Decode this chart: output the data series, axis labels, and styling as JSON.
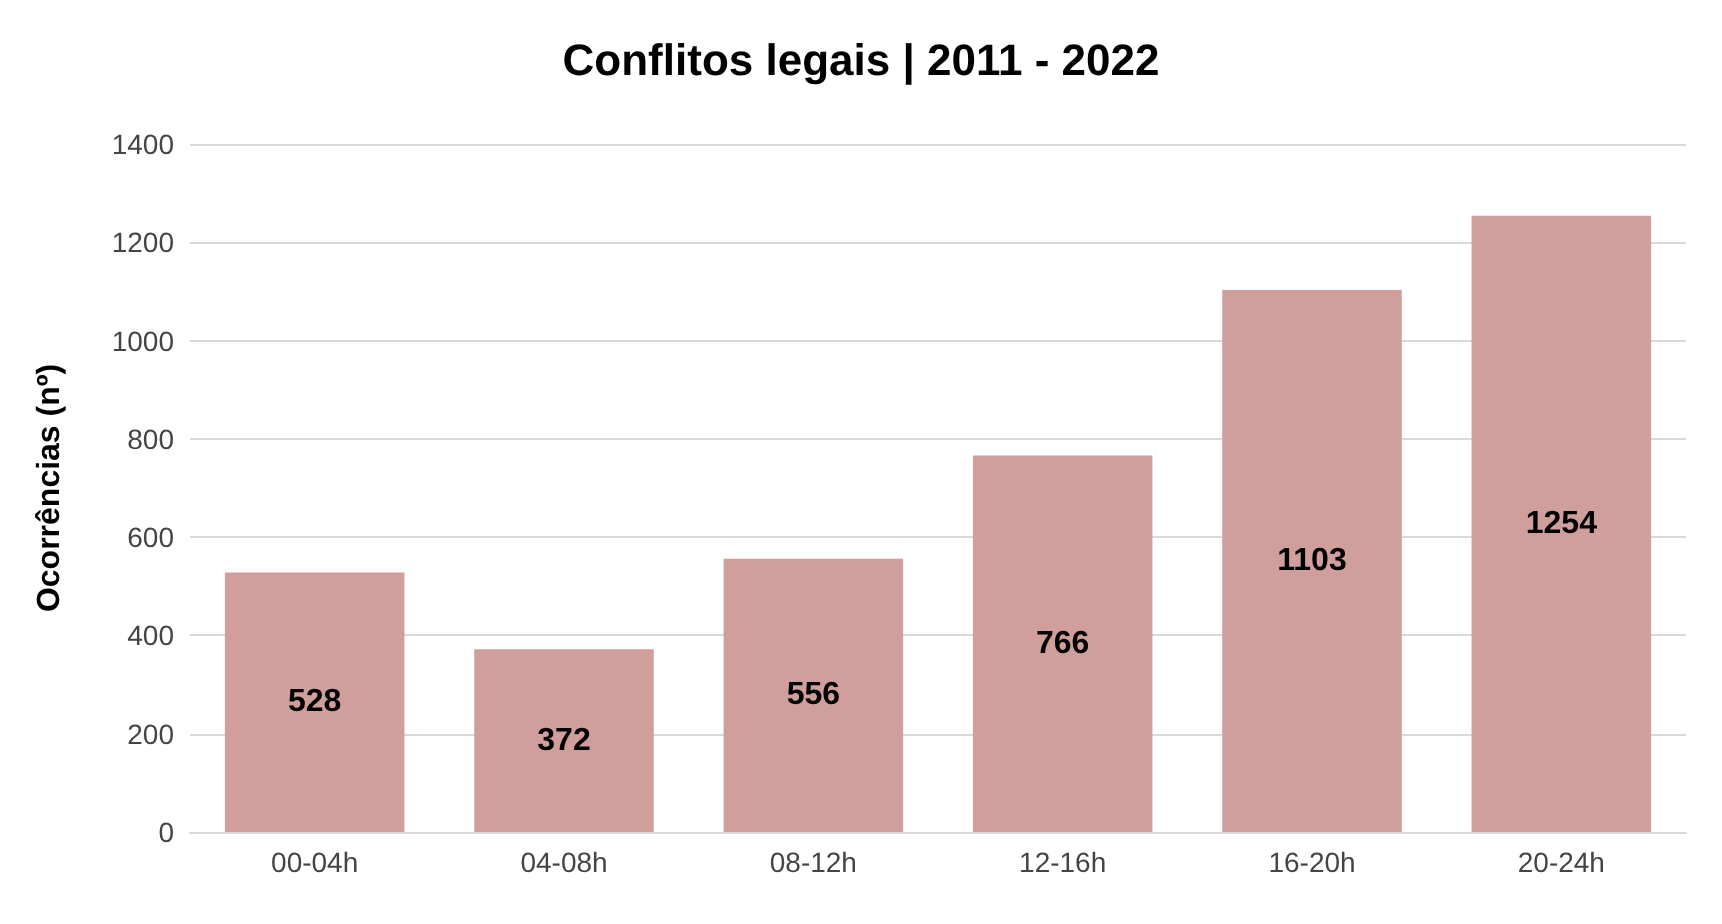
{
  "chart_data": {
    "type": "bar",
    "title": "Conflitos legais | 2011 - 2022",
    "ylabel": "Ocorrências (nº)",
    "categories": [
      "00-04h",
      "04-08h",
      "08-12h",
      "12-16h",
      "16-20h",
      "20-24h"
    ],
    "values": [
      528,
      372,
      556,
      766,
      1103,
      1254
    ],
    "color": "#d09e9b",
    "ylim": [
      0,
      1400
    ],
    "yticks": [
      0,
      200,
      400,
      600,
      800,
      1000,
      1200,
      1400
    ],
    "grid": "y",
    "data_labels": true
  }
}
